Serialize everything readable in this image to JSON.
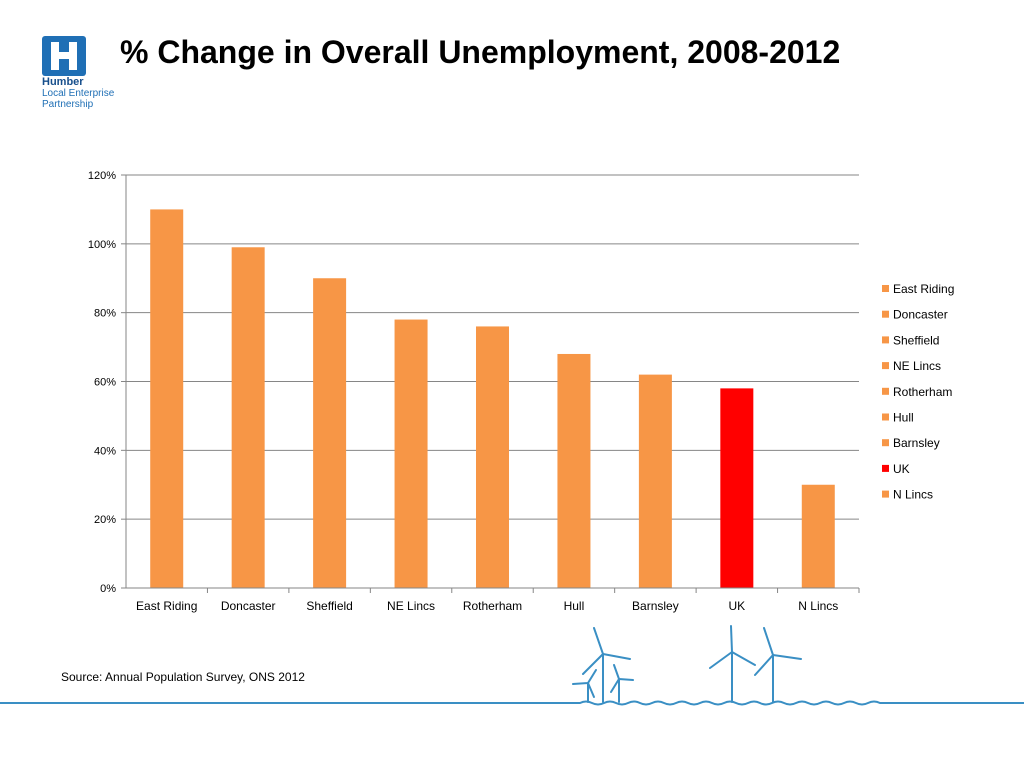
{
  "header": {
    "title": "% Change in Overall Unemployment, 2008-2012",
    "logo": {
      "line1": "Humber",
      "line2": "Local Enterprise",
      "line3": "Partnership",
      "icon": "h-logo-icon",
      "color": "#1f6fb5"
    }
  },
  "chart_data": {
    "type": "bar",
    "title": "",
    "xlabel": "",
    "ylabel": "",
    "categories": [
      "East Riding",
      "Doncaster",
      "Sheffield",
      "NE Lincs",
      "Rotherham",
      "Hull",
      "Barnsley",
      "UK",
      "N Lincs"
    ],
    "values": [
      110,
      99,
      90,
      78,
      76,
      68,
      62,
      58,
      30
    ],
    "colors": [
      "#f79646",
      "#f79646",
      "#f79646",
      "#f79646",
      "#f79646",
      "#f79646",
      "#f79646",
      "#ff0000",
      "#f79646"
    ],
    "ylim": [
      0,
      120
    ],
    "yticks": [
      0,
      20,
      40,
      60,
      80,
      100,
      120
    ],
    "ytick_labels": [
      "0%",
      "20%",
      "40%",
      "60%",
      "80%",
      "100%",
      "120%"
    ],
    "grid": true,
    "legend": {
      "placement": "right",
      "entries": [
        "East Riding",
        "Doncaster",
        "Sheffield",
        "NE Lincs",
        "Rotherham",
        "Hull",
        "Barnsley",
        "UK",
        "N Lincs"
      ]
    }
  },
  "footer": {
    "source": "Source: Annual Population Survey, ONS 2012",
    "decoration": "wind-turbines-icon",
    "accent": "#3a8fc4"
  }
}
